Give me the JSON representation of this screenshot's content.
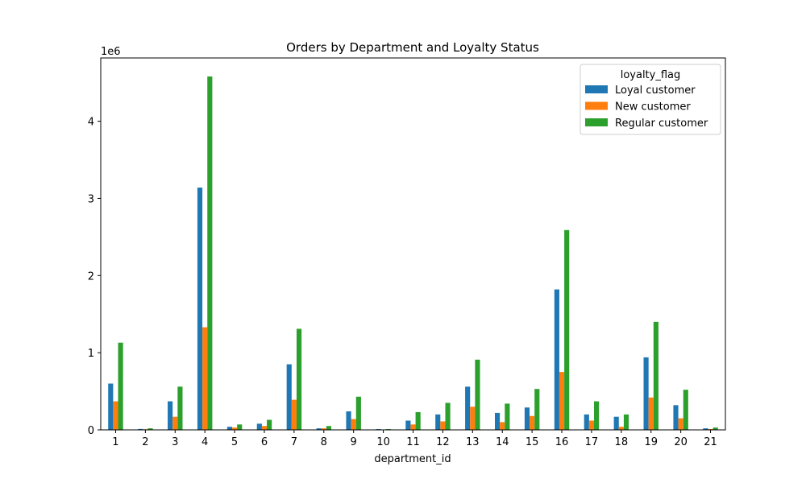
{
  "chart_data": {
    "type": "bar",
    "title": "Orders by Department and Loyalty Status",
    "xlabel": "department_id",
    "ylabel": "",
    "y_scale_label": "1e6",
    "y_scale": 1000000,
    "ylim": [
      0,
      4.82
    ],
    "y_ticks": [
      0,
      1,
      2,
      3,
      4
    ],
    "categories": [
      "1",
      "2",
      "3",
      "4",
      "5",
      "6",
      "7",
      "8",
      "9",
      "10",
      "11",
      "12",
      "13",
      "14",
      "15",
      "16",
      "17",
      "18",
      "19",
      "20",
      "21"
    ],
    "legend": {
      "title": "loyalty_flag",
      "position": "top-right"
    },
    "series": [
      {
        "name": "Loyal customer",
        "color": "#1f77b4",
        "values": [
          0.6,
          0.012,
          0.37,
          3.14,
          0.04,
          0.08,
          0.85,
          0.02,
          0.24,
          0.01,
          0.12,
          0.2,
          0.56,
          0.22,
          0.29,
          1.82,
          0.2,
          0.17,
          0.94,
          0.32,
          0.02
        ]
      },
      {
        "name": "New customer",
        "color": "#ff7f0e",
        "values": [
          0.37,
          0.008,
          0.17,
          1.33,
          0.03,
          0.05,
          0.39,
          0.02,
          0.14,
          0.005,
          0.07,
          0.11,
          0.3,
          0.1,
          0.18,
          0.75,
          0.12,
          0.04,
          0.42,
          0.15,
          0.01
        ]
      },
      {
        "name": "Regular customer",
        "color": "#2ca02c",
        "values": [
          1.13,
          0.02,
          0.56,
          4.58,
          0.07,
          0.13,
          1.31,
          0.05,
          0.43,
          0.01,
          0.23,
          0.35,
          0.91,
          0.34,
          0.53,
          2.59,
          0.37,
          0.2,
          1.4,
          0.52,
          0.03
        ]
      }
    ]
  }
}
